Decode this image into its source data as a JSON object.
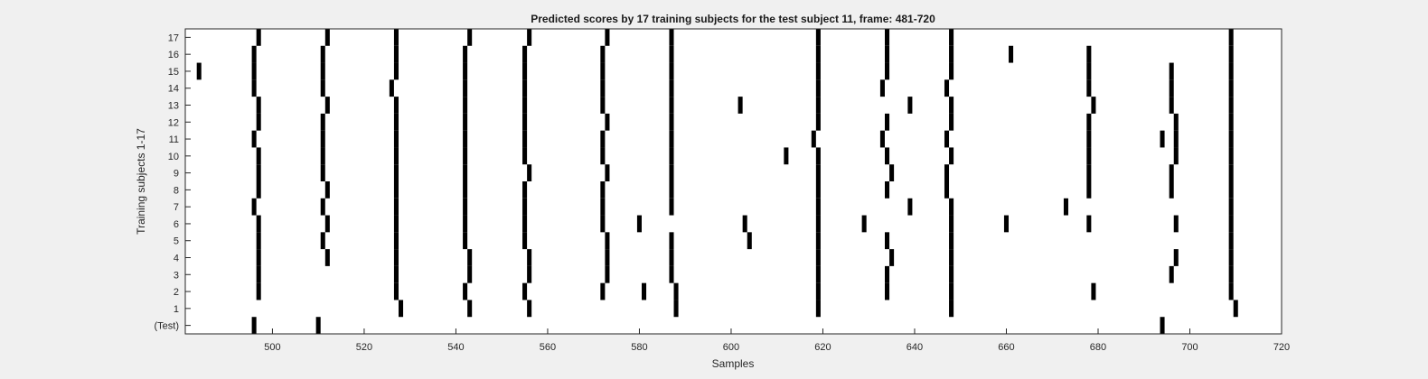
{
  "chart_data": {
    "type": "raster",
    "title": "Predicted scores by 17 training subjects for the test subject 11, frame: 481-720",
    "xlabel": "Samples",
    "ylabel": "Training subjects 1-17",
    "xlim": [
      481,
      720
    ],
    "x_ticks": [
      500,
      520,
      540,
      560,
      580,
      600,
      620,
      640,
      660,
      680,
      700,
      720
    ],
    "rows": [
      {
        "label": "(Test)",
        "events": [
          496,
          510,
          694
        ]
      },
      {
        "label": "1",
        "events": [
          528,
          543,
          556,
          588,
          619,
          648,
          710
        ]
      },
      {
        "label": "2",
        "events": [
          497,
          527,
          542,
          555,
          572,
          581,
          588,
          619,
          634,
          648,
          679,
          709
        ]
      },
      {
        "label": "3",
        "events": [
          497,
          527,
          543,
          556,
          573,
          587,
          619,
          634,
          648,
          696,
          709
        ]
      },
      {
        "label": "4",
        "events": [
          497,
          512,
          527,
          543,
          556,
          573,
          587,
          619,
          635,
          648,
          697,
          709
        ]
      },
      {
        "label": "5",
        "events": [
          497,
          511,
          527,
          542,
          555,
          573,
          587,
          604,
          619,
          634,
          648,
          709
        ]
      },
      {
        "label": "6",
        "events": [
          497,
          512,
          527,
          542,
          555,
          572,
          580,
          603,
          619,
          629,
          648,
          660,
          678,
          697,
          709
        ]
      },
      {
        "label": "7",
        "events": [
          496,
          511,
          527,
          542,
          555,
          572,
          587,
          619,
          639,
          648,
          673,
          709
        ]
      },
      {
        "label": "8",
        "events": [
          497,
          512,
          527,
          542,
          555,
          572,
          587,
          619,
          634,
          647,
          678,
          696,
          709
        ]
      },
      {
        "label": "9",
        "events": [
          497,
          511,
          527,
          542,
          556,
          573,
          587,
          619,
          635,
          647,
          678,
          696,
          709
        ]
      },
      {
        "label": "10",
        "events": [
          497,
          511,
          527,
          542,
          555,
          572,
          587,
          612,
          619,
          634,
          648,
          678,
          697,
          709
        ]
      },
      {
        "label": "11",
        "events": [
          496,
          511,
          527,
          542,
          555,
          572,
          587,
          618,
          633,
          647,
          678,
          694,
          697,
          709
        ]
      },
      {
        "label": "12",
        "events": [
          497,
          511,
          527,
          542,
          555,
          573,
          587,
          619,
          634,
          648,
          678,
          697,
          709
        ]
      },
      {
        "label": "13",
        "events": [
          497,
          512,
          527,
          542,
          555,
          572,
          587,
          602,
          619,
          639,
          648,
          679,
          696,
          709
        ]
      },
      {
        "label": "14",
        "events": [
          496,
          511,
          526,
          542,
          555,
          572,
          587,
          619,
          633,
          647,
          678,
          696,
          709
        ]
      },
      {
        "label": "15",
        "events": [
          484,
          496,
          511,
          527,
          542,
          555,
          572,
          587,
          619,
          634,
          648,
          678,
          696,
          709
        ]
      },
      {
        "label": "16",
        "events": [
          496,
          511,
          527,
          542,
          555,
          572,
          587,
          619,
          634,
          648,
          661,
          678,
          709
        ]
      },
      {
        "label": "17",
        "events": [
          497,
          512,
          527,
          543,
          556,
          573,
          587,
          619,
          634,
          648,
          709
        ]
      }
    ],
    "colors": {
      "background": "#f0f0f0",
      "plot_bg": "#ffffff",
      "mark": "#000000",
      "axis": "#262626"
    }
  }
}
